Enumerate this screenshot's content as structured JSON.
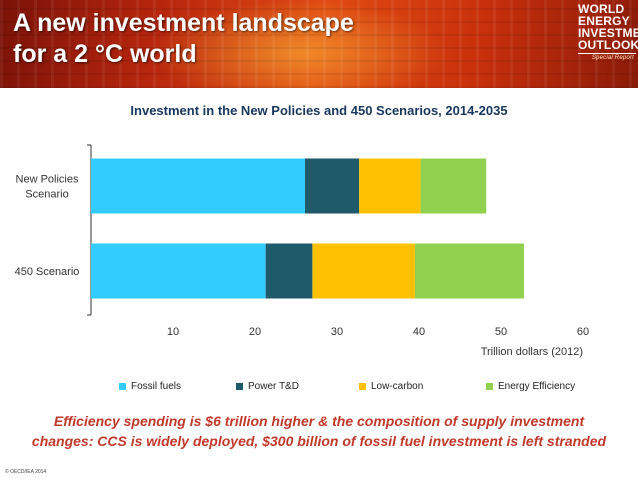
{
  "slide": {
    "title_lines": [
      "A new investment landscape",
      "for a 2 °C world"
    ],
    "logo_lines": [
      "WORLD",
      "ENERGY",
      "INVESTMENT",
      "OUTLOOK"
    ],
    "logo_subtitle": "Special Report",
    "takeaway_lines": [
      "Efficiency spending is $6 trillion higher & the composition of supply investment",
      "changes: CCS is widely deployed, $300 billion of fossil fuel investment is left stranded"
    ],
    "copyright": "© OECD/IEA 2014"
  },
  "chart_data": {
    "type": "bar",
    "orientation": "horizontal",
    "stacked": true,
    "title": "Investment in the New Policies and 450 Scenarios, 2014-2035",
    "xlabel": "Trillion dollars (2012)",
    "ylabel": "",
    "xlim": [
      0,
      60
    ],
    "xticks": [
      10,
      20,
      30,
      40,
      50,
      60
    ],
    "grid": false,
    "legend_position": "bottom",
    "categories": [
      "New Policies Scenario",
      "450 Scenario"
    ],
    "category_label_lines": [
      [
        "New Policies",
        "Scenario"
      ],
      [
        "450 Scenario"
      ]
    ],
    "series": [
      {
        "name": "Fossil fuels",
        "color": "#33ccff",
        "values": [
          26.1,
          21.3
        ]
      },
      {
        "name": "Power T&D",
        "color": "#1f5a6b",
        "values": [
          6.6,
          5.7
        ]
      },
      {
        "name": "Low-carbon",
        "color": "#ffc000",
        "values": [
          7.5,
          12.5
        ]
      },
      {
        "name": "Energy Efficiency",
        "color": "#92d050",
        "values": [
          8.0,
          13.3
        ]
      }
    ]
  }
}
